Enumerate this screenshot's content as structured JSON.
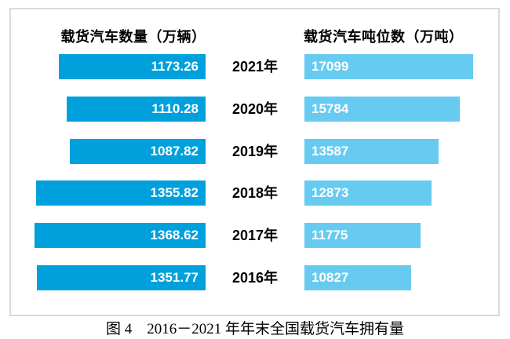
{
  "figure": {
    "caption": "图 4　2016－2021 年年末全国载货汽车拥有量"
  },
  "chart_data": {
    "type": "bar",
    "orientation": "horizontal",
    "layout": "paired-tornado",
    "categories": [
      "2021年",
      "2020年",
      "2019年",
      "2018年",
      "2017年",
      "2016年"
    ],
    "series": [
      {
        "name": "载货汽车数量（万辆）",
        "values": [
          1173.26,
          1110.28,
          1087.82,
          1355.82,
          1368.62,
          1351.77
        ],
        "color": "#00A0DC",
        "bar_alignment": "right",
        "value_format": "0.00",
        "value_label_position": "inside-end"
      },
      {
        "name": "载货汽车吨位数（万吨）",
        "values": [
          17099,
          15784,
          13587,
          12873,
          11775,
          10827
        ],
        "color": "#67CBF1",
        "bar_alignment": "left",
        "value_format": "0",
        "value_label_position": "inside-start"
      }
    ],
    "title": "图 4　2016－2021 年年末全国载货汽车拥有量",
    "value_labels_shown": true,
    "axes_shown": false,
    "grid": false,
    "legend_position": "column-headers"
  },
  "colors": {
    "left_bar": "#00A0DC",
    "right_bar": "#67CBF1",
    "frame_border": "#D9D9D9",
    "label_text": "#000000",
    "value_text": "#FFFFFF",
    "background": "#FFFFFF"
  }
}
